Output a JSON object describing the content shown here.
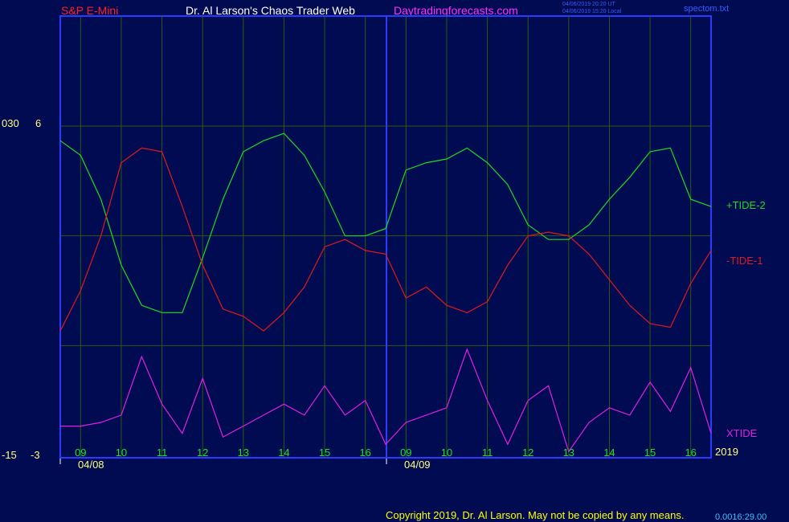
{
  "header": {
    "symbol": "S&P E-Mini",
    "title": "Dr. Al Larson's Chaos Trader Web",
    "site": "Daytradingforecasts.com",
    "timestamp_ut": "04/06/2019 20:20 UT",
    "timestamp_local": "04/06/2019 15:20 Local",
    "file": "spectom.txt"
  },
  "colors": {
    "background": "#000b52",
    "frame": "#2a3cff",
    "grid": "#2c5a10",
    "tide_plus": "#1edb1e",
    "tide_minus": "#e01a1a",
    "xtide": "#e020e0",
    "symbol": "#ff2020",
    "title": "#ffffff",
    "site": "#ff30ff",
    "axis_text": "#ffff80",
    "hour_text": "#20e020"
  },
  "y_axis": {
    "outer_top": "030",
    "inner_top": "6",
    "outer_bottom": "-15",
    "inner_bottom": "-3"
  },
  "footer": {
    "copyright": "Copyright 2019, Dr. Al Larson. May not be copied by any means.",
    "cursor_readout": "0.0016:29.00"
  },
  "chart_data": {
    "type": "line",
    "title": "",
    "xlabel": "",
    "ylabel": "",
    "ylim": [
      -3,
      6
    ],
    "grid": true,
    "hour_ticks": [
      "09",
      "10",
      "11",
      "12",
      "13",
      "14",
      "15",
      "16",
      "09",
      "10",
      "11",
      "12",
      "13",
      "14",
      "15",
      "16"
    ],
    "date_labels": [
      "04/08",
      "04/09"
    ],
    "year_label": "2019",
    "series": [
      {
        "name": "+TIDE-2",
        "color_key": "tide_plus",
        "x": [
          0,
          0.5,
          1,
          1.5,
          2,
          2.5,
          3,
          3.5,
          4,
          4.5,
          5,
          5.5,
          6,
          6.5,
          7,
          7.5,
          8,
          8.5,
          9,
          9.5,
          10,
          10.5,
          11,
          11.5,
          12,
          12.5,
          13,
          13.5,
          14,
          14.5,
          15,
          15.5,
          16
        ],
        "values": [
          5.6,
          5.2,
          4.0,
          2.2,
          1.1,
          0.9,
          0.9,
          2.4,
          4.0,
          5.3,
          5.6,
          5.8,
          5.2,
          4.2,
          3.0,
          3.0,
          3.2,
          4.8,
          5.0,
          5.1,
          5.4,
          5.0,
          4.4,
          3.3,
          2.9,
          2.9,
          3.3,
          4.0,
          4.6,
          5.3,
          5.4,
          4.0,
          3.8
        ]
      },
      {
        "name": "-TIDE-1",
        "color_key": "tide_minus",
        "x": [
          0,
          0.5,
          1,
          1.5,
          2,
          2.5,
          3,
          3.5,
          4,
          4.5,
          5,
          5.5,
          6,
          6.5,
          7,
          7.5,
          8,
          8.5,
          9,
          9.5,
          10,
          10.5,
          11,
          11.5,
          12,
          12.5,
          13,
          13.5,
          14,
          14.5,
          15,
          15.5,
          16
        ],
        "values": [
          0.4,
          1.5,
          3.0,
          5.0,
          5.4,
          5.3,
          3.8,
          2.2,
          1.0,
          0.8,
          0.4,
          0.9,
          1.6,
          2.7,
          2.9,
          2.6,
          2.5,
          1.3,
          1.6,
          1.1,
          0.9,
          1.2,
          2.2,
          3.0,
          3.1,
          3.0,
          2.5,
          1.8,
          1.1,
          0.6,
          0.5,
          1.7,
          2.6
        ]
      },
      {
        "name": "XTIDE",
        "color_key": "xtide",
        "x": [
          0,
          0.5,
          1,
          1.5,
          2,
          2.5,
          3,
          3.5,
          4,
          4.5,
          5,
          5.5,
          6,
          6.5,
          7,
          7.5,
          8,
          8.5,
          9,
          9.5,
          10,
          10.5,
          11,
          11.5,
          12,
          12.5,
          13,
          13.5,
          14,
          14.5,
          15,
          15.5,
          16
        ],
        "values": [
          -2.2,
          -2.2,
          -2.1,
          -1.9,
          -0.3,
          -1.6,
          -2.4,
          -0.9,
          -2.5,
          -2.2,
          -1.9,
          -1.6,
          -1.9,
          -1.1,
          -1.9,
          -1.5,
          -2.7,
          -2.1,
          -1.9,
          -1.7,
          -0.1,
          -1.5,
          -2.7,
          -1.5,
          -1.1,
          -2.9,
          -2.1,
          -1.7,
          -1.9,
          -1.0,
          -1.8,
          -0.6,
          -2.4
        ]
      }
    ]
  }
}
